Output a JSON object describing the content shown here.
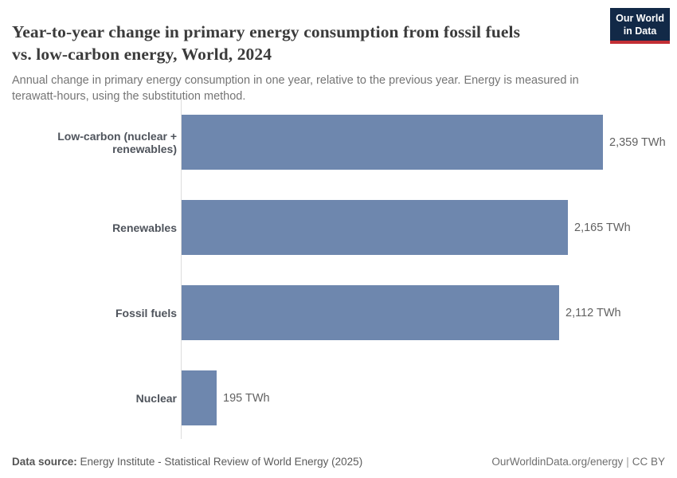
{
  "header": {
    "title": "Year-to-year change in primary energy consumption from fossil fuels\nvs. low-carbon energy, World, 2024",
    "subtitle": "Annual change in primary energy consumption in one year, relative to the previous year. Energy is measured in\nterawatt-hours, using the substitution method.",
    "logo": {
      "line1": "Our World",
      "line2": "in Data"
    }
  },
  "chart_data": {
    "type": "bar",
    "orientation": "horizontal",
    "title": "Year-to-year change in primary energy consumption from fossil fuels vs. low-carbon energy, World, 2024",
    "categories": [
      "Low-carbon (nuclear + renewables)",
      "Renewables",
      "Fossil fuels",
      "Nuclear"
    ],
    "values": [
      2359,
      2165,
      2112,
      195
    ],
    "value_labels": [
      "2,359 TWh",
      "2,165 TWh",
      "2,112 TWh",
      "195 TWh"
    ],
    "unit": "TWh",
    "xlim": [
      0,
      2359
    ],
    "grid": false,
    "legend": "none",
    "bar_color": "#6e87ae"
  },
  "footer": {
    "data_source_label": "Data source:",
    "data_source_text": " Energy Institute - Statistical Review of World Energy (2025)",
    "link_text": "OurWorldinData.org/energy",
    "separator": "|",
    "license_text": "CC BY"
  },
  "colors": {
    "bar": "#6e87ae",
    "axis_line": "#dcdcdc",
    "title_text": "#3b3b3b",
    "subtitle_text": "#757575",
    "category_label": "#4f545c",
    "value_label": "#616161",
    "footer_text": "#5b5b5b",
    "logo_background": "#122947",
    "logo_accent": "#c22f35"
  }
}
